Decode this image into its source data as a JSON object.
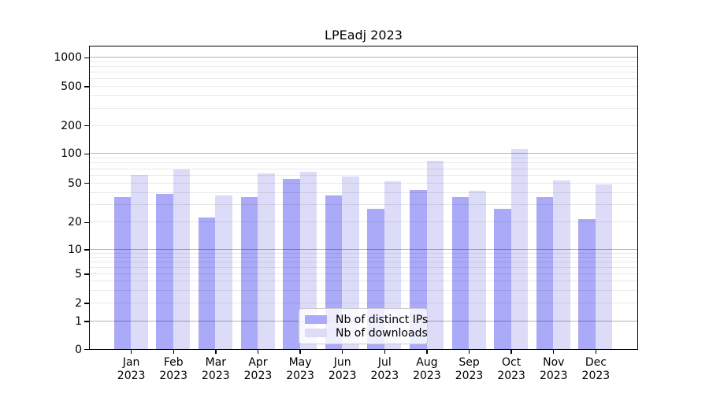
{
  "chart_data": {
    "type": "bar",
    "title": "LPEadj 2023",
    "categories": [
      "Jan",
      "Feb",
      "Mar",
      "Apr",
      "May",
      "Jun",
      "Jul",
      "Aug",
      "Sep",
      "Oct",
      "Nov",
      "Dec"
    ],
    "year": "2023",
    "series": [
      {
        "name": "Nb of distinct IPs",
        "color": "#aaaaf8",
        "values": [
          37,
          40,
          23,
          37,
          57,
          38,
          28,
          44,
          37,
          28,
          37,
          22
        ]
      },
      {
        "name": "Nb of downloads",
        "color": "#dcdcf8",
        "values": [
          62,
          70,
          38,
          64,
          67,
          60,
          53,
          87,
          43,
          114,
          54,
          50
        ]
      }
    ],
    "y_axis": {
      "scale": "symlog",
      "ticks": [
        0,
        1,
        2,
        5,
        10,
        20,
        50,
        100,
        200,
        500,
        1000
      ]
    },
    "x_axis": {
      "tick_format": "month-newline-year"
    },
    "legend": {
      "position": "lower center"
    },
    "grid": true,
    "colors": {
      "major_grid": "#b0b0b0",
      "minor_grid": "#e9e9e9",
      "axis": "#000000",
      "text": "#000000"
    }
  }
}
